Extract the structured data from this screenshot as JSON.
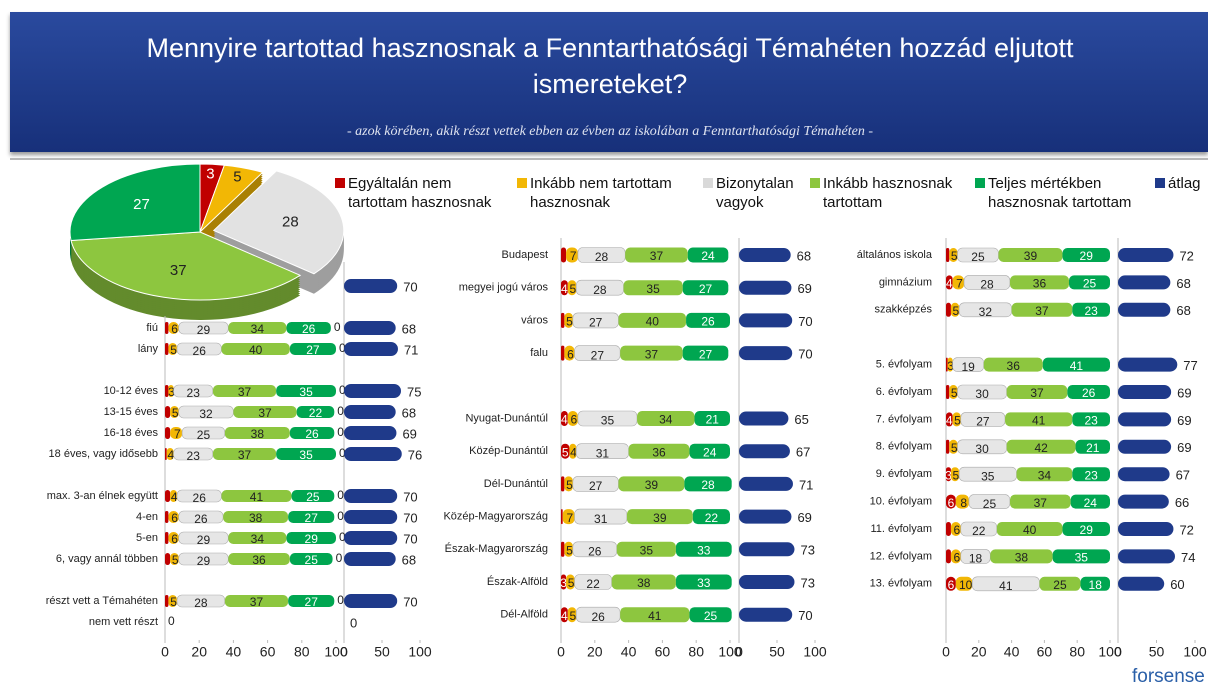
{
  "header": {
    "title": "Mennyire tartottad hasznosnak a Fenntarthatósági Témahéten hozzád eljutott ismereteket?",
    "subtitle": "- azok körében, akik részt vettek ebben az évben az iskolában a Fenntarthatósági Témahéten -"
  },
  "legend": [
    {
      "name": "Egyáltalán nem tartottam hasznosnak",
      "color": "#c00000"
    },
    {
      "name": "Inkább nem tartottam hasznosnak",
      "color": "#f2b705"
    },
    {
      "name": "Bizonytalan vagyok",
      "color": "#d9d9d9"
    },
    {
      "name": "Inkább hasznosnak tartottam",
      "color": "#8dc63f"
    },
    {
      "name": "Teljes mértékben hasznosnak tartottam",
      "color": "#00a651"
    },
    {
      "name": "átlag",
      "color": "#1f3a8a"
    }
  ],
  "chart_data": [
    {
      "type": "pie",
      "values": [
        3,
        5,
        28,
        37,
        27
      ],
      "colors": [
        "#c00000",
        "#f2b705",
        "#e2e2e2",
        "#8dc63f",
        "#00a651"
      ]
    },
    {
      "type": "stacked-bar",
      "categories": [
        null,
        null,
        "fiú",
        "lány",
        null,
        "10-12 éves",
        "13-15 éves",
        "16-18 éves",
        "18 éves, vagy idősebb",
        null,
        "max. 3-an élnek együtt",
        "4-en",
        "5-en",
        "6, vagy annál többen",
        null,
        "részt vett a Témahéten",
        "nem vett részt"
      ],
      "series": [
        {
          "color": "#c00000",
          "values": [
            null,
            null,
            2,
            2,
            null,
            2,
            3,
            3,
            1,
            null,
            3,
            2,
            2,
            3,
            null,
            2,
            0
          ]
        },
        {
          "color": "#f2b705",
          "values": [
            null,
            null,
            6,
            5,
            null,
            3,
            5,
            7,
            4,
            null,
            4,
            6,
            6,
            5,
            null,
            5,
            0
          ]
        },
        {
          "color": "#e6e6e6",
          "values": [
            null,
            null,
            29,
            26,
            null,
            23,
            32,
            25,
            23,
            null,
            26,
            26,
            29,
            29,
            null,
            28,
            0
          ]
        },
        {
          "color": "#8dc63f",
          "values": [
            null,
            null,
            34,
            40,
            null,
            37,
            37,
            38,
            37,
            null,
            41,
            38,
            34,
            36,
            null,
            37,
            0
          ]
        },
        {
          "color": "#00a651",
          "values": [
            null,
            null,
            26,
            27,
            null,
            35,
            22,
            26,
            35,
            null,
            25,
            27,
            29,
            25,
            null,
            27,
            0
          ]
        },
        {
          "color": "#1f3a8a",
          "values": [
            null,
            null,
            0,
            0,
            null,
            0,
            0,
            0,
            0,
            null,
            0,
            0,
            0,
            0,
            null,
            0,
            0
          ]
        }
      ],
      "average": {
        "color": "#1f3a8a",
        "values": [
          70,
          null,
          68,
          71,
          null,
          75,
          68,
          69,
          76,
          null,
          70,
          70,
          70,
          68,
          null,
          70,
          0
        ]
      },
      "xlim": [
        0,
        100
      ],
      "xticks": [
        0,
        20,
        40,
        60,
        80,
        100
      ],
      "x2lim": [
        0,
        100
      ],
      "x2ticks": [
        0,
        50,
        100
      ]
    },
    {
      "type": "stacked-bar",
      "categories": [
        "Budapest",
        "megyei jogú város",
        "város",
        "falu",
        null,
        "Nyugat-Dunántúl",
        "Közép-Dunántúl",
        "Dél-Dunántúl",
        "Közép-Magyarország",
        "Észak-Magyarország",
        "Észak-Alföld",
        "Dél-Alföld"
      ],
      "series": [
        {
          "color": "#c00000",
          "values": [
            3,
            4,
            2,
            2,
            null,
            4,
            5,
            2,
            1,
            2,
            3,
            4
          ],
          "value_labels": [
            null,
            "4",
            null,
            null,
            null,
            "4",
            "5",
            null,
            null,
            null,
            "3",
            "4"
          ]
        },
        {
          "color": "#f2b705",
          "values": [
            7,
            5,
            5,
            6,
            null,
            6,
            4,
            5,
            7,
            5,
            5,
            5
          ]
        },
        {
          "color": "#e6e6e6",
          "values": [
            28,
            28,
            27,
            27,
            null,
            35,
            31,
            27,
            31,
            26,
            22,
            26
          ]
        },
        {
          "color": "#8dc63f",
          "values": [
            37,
            35,
            40,
            37,
            null,
            34,
            36,
            39,
            39,
            35,
            38,
            41
          ]
        },
        {
          "color": "#00a651",
          "values": [
            24,
            27,
            26,
            27,
            null,
            21,
            24,
            28,
            22,
            33,
            33,
            25
          ]
        }
      ],
      "average": {
        "color": "#1f3a8a",
        "values": [
          68,
          69,
          70,
          70,
          null,
          65,
          67,
          71,
          69,
          73,
          73,
          70
        ]
      },
      "xlim": [
        0,
        100
      ],
      "xticks": [
        0,
        20,
        40,
        60,
        80,
        100
      ],
      "x2lim": [
        0,
        100
      ],
      "x2ticks": [
        0,
        50,
        100
      ]
    },
    {
      "type": "stacked-bar",
      "categories": [
        "általános iskola",
        "gimnázium",
        "szakképzés",
        null,
        "5. évfolyam",
        "6. évfolyam",
        "7. évfolyam",
        "8. évfolyam",
        "9. évfolyam",
        "10. évfolyam",
        "11. évfolyam",
        "12. évfolyam",
        "13. évfolyam"
      ],
      "series": [
        {
          "color": "#c00000",
          "values": [
            2,
            4,
            3,
            null,
            1,
            2,
            4,
            2,
            3,
            6,
            3,
            3,
            6
          ],
          "value_labels": [
            null,
            "4",
            null,
            null,
            null,
            null,
            "4",
            null,
            "3",
            "6",
            null,
            null,
            "6"
          ]
        },
        {
          "color": "#f2b705",
          "values": [
            5,
            7,
            5,
            null,
            3,
            5,
            5,
            5,
            5,
            8,
            6,
            6,
            10
          ]
        },
        {
          "color": "#e6e6e6",
          "values": [
            25,
            28,
            32,
            null,
            19,
            30,
            27,
            30,
            35,
            25,
            22,
            18,
            41
          ]
        },
        {
          "color": "#8dc63f",
          "values": [
            39,
            36,
            37,
            null,
            36,
            37,
            41,
            42,
            34,
            37,
            40,
            38,
            25
          ]
        },
        {
          "color": "#00a651",
          "values": [
            29,
            25,
            23,
            null,
            41,
            26,
            23,
            21,
            23,
            24,
            29,
            35,
            18
          ]
        }
      ],
      "average": {
        "color": "#1f3a8a",
        "values": [
          72,
          68,
          68,
          null,
          77,
          69,
          69,
          69,
          67,
          66,
          72,
          74,
          60
        ]
      },
      "xlim": [
        0,
        100
      ],
      "xticks": [
        0,
        20,
        40,
        60,
        80,
        100
      ],
      "x2lim": [
        0,
        100
      ],
      "x2ticks": [
        0,
        50,
        100
      ]
    }
  ],
  "logo": "forsense"
}
